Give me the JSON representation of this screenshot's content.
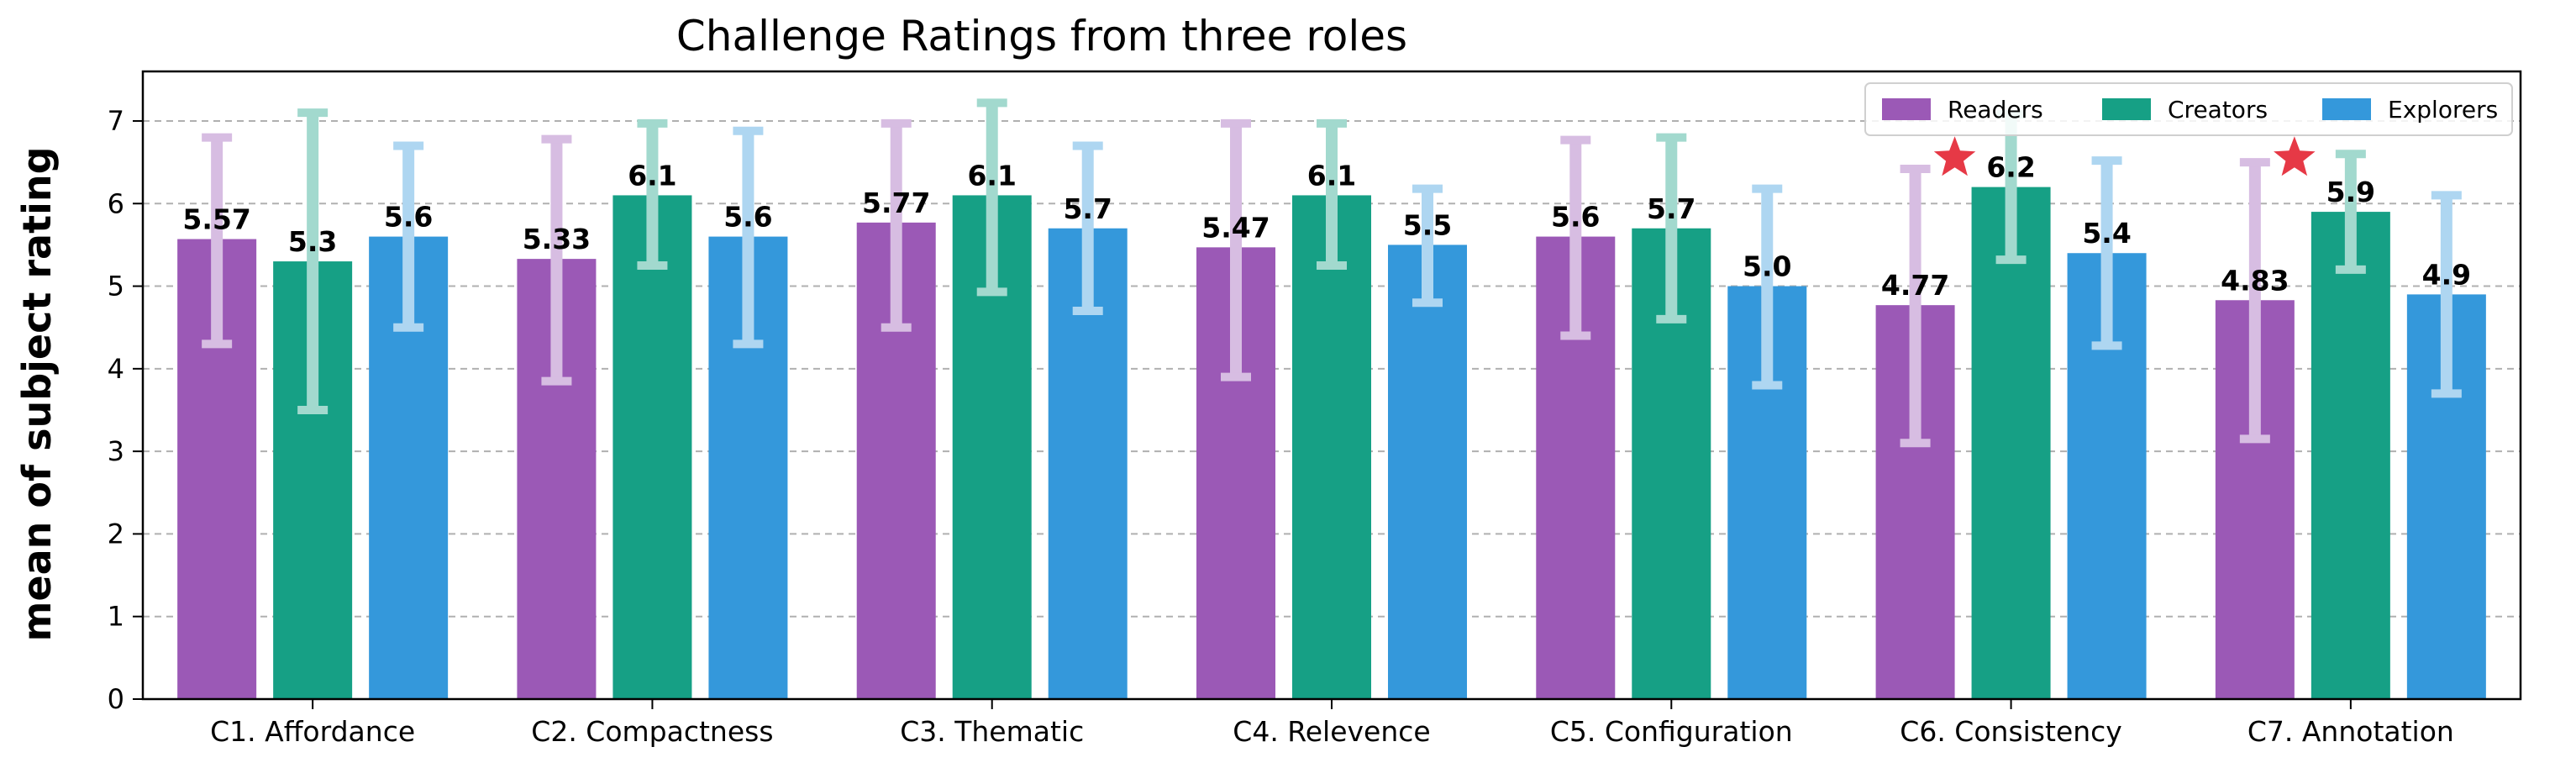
{
  "chart_data": {
    "type": "bar",
    "title": "Challenge Ratings from three roles",
    "xlabel": "",
    "ylabel": "mean of subject rating",
    "ylim": [
      0,
      7.6
    ],
    "yticks": [
      0,
      1,
      2,
      3,
      4,
      5,
      6,
      7
    ],
    "grid": "horizontal dashed",
    "legend_position": "top-right",
    "categories": [
      "C1. Affordance",
      "C2. Compactness",
      "C3. Thematic",
      "C4. Relevence",
      "C5. Configuration",
      "C6. Consistency",
      "C7. Annotation"
    ],
    "series": [
      {
        "name": "Readers",
        "color": "#9b59b6",
        "error_color": "#d7bde2",
        "values": [
          5.57,
          5.33,
          5.77,
          5.47,
          5.6,
          4.77,
          4.83
        ],
        "labels": [
          "5.57",
          "5.33",
          "5.77",
          "5.47",
          "5.6",
          "4.77",
          "4.83"
        ],
        "error_low": [
          4.3,
          3.85,
          4.5,
          3.9,
          4.4,
          3.1,
          3.15
        ],
        "error_high": [
          6.8,
          6.78,
          6.97,
          6.97,
          6.77,
          6.42,
          6.5
        ]
      },
      {
        "name": "Creators",
        "color": "#16a085",
        "error_color": "#a2d9ce",
        "values": [
          5.3,
          6.1,
          6.1,
          6.1,
          5.7,
          6.2,
          5.9
        ],
        "labels": [
          "5.3",
          "6.1",
          "6.1",
          "6.1",
          "5.7",
          "6.2",
          "5.9"
        ],
        "error_low": [
          3.5,
          5.25,
          4.93,
          5.25,
          4.6,
          5.32,
          5.2
        ],
        "error_high": [
          7.1,
          6.97,
          7.22,
          6.97,
          6.8,
          7.08,
          6.6
        ]
      },
      {
        "name": "Explorers",
        "color": "#3498db",
        "error_color": "#aed6f1",
        "values": [
          5.6,
          5.6,
          5.7,
          5.5,
          5.0,
          5.4,
          4.9
        ],
        "labels": [
          "5.6",
          "5.6",
          "5.7",
          "5.5",
          "5.0",
          "5.4",
          "4.9"
        ],
        "error_low": [
          4.5,
          4.3,
          4.7,
          4.8,
          3.8,
          4.28,
          3.7
        ],
        "error_high": [
          6.7,
          6.88,
          6.7,
          6.18,
          6.18,
          6.52,
          6.1
        ]
      }
    ],
    "annotations": [
      {
        "type": "star",
        "color": "#e63946",
        "category_index": 5,
        "x_offset": -0.5,
        "y": 6.55
      },
      {
        "type": "star",
        "color": "#e63946",
        "category_index": 6,
        "x_offset": -0.5,
        "y": 6.55
      }
    ]
  }
}
